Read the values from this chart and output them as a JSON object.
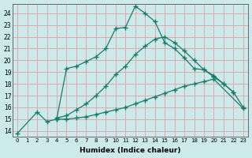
{
  "xlabel": "Humidex (Indice chaleur)",
  "bg_color": "#cceaea",
  "grid_color": "#e0a8a8",
  "line_color": "#1a7a6a",
  "xlim_min": -0.5,
  "xlim_max": 23.5,
  "ylim_min": 13.5,
  "ylim_max": 24.8,
  "xticks": [
    0,
    1,
    2,
    3,
    4,
    5,
    6,
    7,
    8,
    9,
    10,
    11,
    12,
    13,
    14,
    15,
    16,
    17,
    18,
    19,
    20,
    21,
    22,
    23
  ],
  "yticks": [
    14,
    15,
    16,
    17,
    18,
    19,
    20,
    21,
    22,
    23,
    24
  ],
  "line1_x": [
    0,
    2,
    3,
    4,
    5,
    6,
    7,
    8,
    9,
    10,
    11,
    12,
    13,
    14,
    15,
    16,
    17,
    18,
    19,
    20,
    21,
    22
  ],
  "line1_y": [
    13.8,
    15.6,
    14.8,
    15.0,
    19.3,
    19.5,
    19.9,
    20.3,
    21.0,
    22.7,
    22.8,
    24.6,
    24.0,
    23.3,
    21.5,
    21.0,
    20.2,
    19.3,
    19.2,
    18.7,
    18.0,
    17.3
  ],
  "line2_x": [
    4,
    5,
    6,
    7,
    8,
    9,
    10,
    11,
    12,
    13,
    14,
    15,
    16,
    17,
    18,
    19,
    20,
    21,
    22,
    23
  ],
  "line2_y": [
    15.1,
    15.3,
    15.8,
    16.3,
    17.0,
    17.8,
    18.8,
    19.5,
    20.5,
    21.2,
    21.8,
    22.0,
    21.5,
    20.8,
    20.0,
    19.2,
    18.6,
    18.0,
    17.3,
    16.0
  ],
  "line3_x": [
    4,
    5,
    6,
    7,
    8,
    9,
    10,
    11,
    12,
    13,
    14,
    15,
    16,
    17,
    18,
    19,
    20,
    23
  ],
  "line3_y": [
    15.0,
    15.0,
    15.1,
    15.2,
    15.4,
    15.6,
    15.8,
    16.0,
    16.3,
    16.6,
    16.9,
    17.2,
    17.5,
    17.8,
    18.0,
    18.2,
    18.4,
    15.9
  ]
}
